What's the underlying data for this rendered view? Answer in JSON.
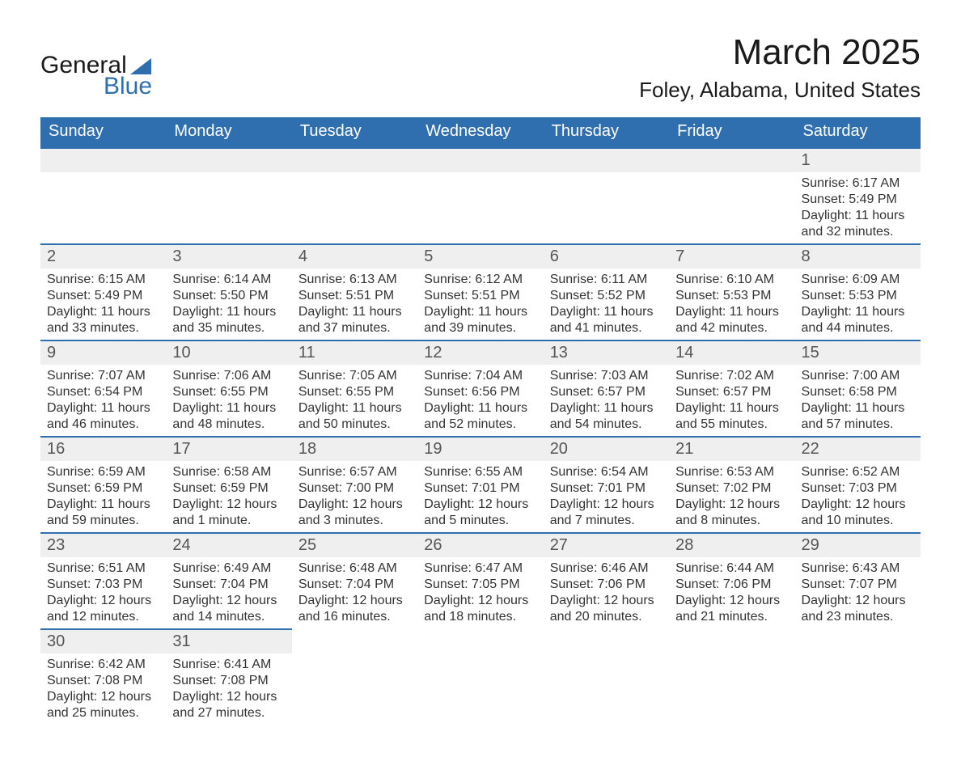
{
  "brand": {
    "line1": "General",
    "line2": "Blue",
    "accent_color": "#2f6fb0"
  },
  "title": "March 2025",
  "location": "Foley, Alabama, United States",
  "colors": {
    "header_bg": "#2f6fb0",
    "header_text": "#ffffff",
    "daynum_bg": "#efefef",
    "daynum_text": "#555555",
    "body_text": "#333333",
    "row_border": "#2f6fb0",
    "page_bg": "#ffffff"
  },
  "weekday_labels": [
    "Sunday",
    "Monday",
    "Tuesday",
    "Wednesday",
    "Thursday",
    "Friday",
    "Saturday"
  ],
  "weeks": [
    [
      null,
      null,
      null,
      null,
      null,
      null,
      {
        "n": "1",
        "sunrise": "Sunrise: 6:17 AM",
        "sunset": "Sunset: 5:49 PM",
        "daylight1": "Daylight: 11 hours",
        "daylight2": "and 32 minutes."
      }
    ],
    [
      {
        "n": "2",
        "sunrise": "Sunrise: 6:15 AM",
        "sunset": "Sunset: 5:49 PM",
        "daylight1": "Daylight: 11 hours",
        "daylight2": "and 33 minutes."
      },
      {
        "n": "3",
        "sunrise": "Sunrise: 6:14 AM",
        "sunset": "Sunset: 5:50 PM",
        "daylight1": "Daylight: 11 hours",
        "daylight2": "and 35 minutes."
      },
      {
        "n": "4",
        "sunrise": "Sunrise: 6:13 AM",
        "sunset": "Sunset: 5:51 PM",
        "daylight1": "Daylight: 11 hours",
        "daylight2": "and 37 minutes."
      },
      {
        "n": "5",
        "sunrise": "Sunrise: 6:12 AM",
        "sunset": "Sunset: 5:51 PM",
        "daylight1": "Daylight: 11 hours",
        "daylight2": "and 39 minutes."
      },
      {
        "n": "6",
        "sunrise": "Sunrise: 6:11 AM",
        "sunset": "Sunset: 5:52 PM",
        "daylight1": "Daylight: 11 hours",
        "daylight2": "and 41 minutes."
      },
      {
        "n": "7",
        "sunrise": "Sunrise: 6:10 AM",
        "sunset": "Sunset: 5:53 PM",
        "daylight1": "Daylight: 11 hours",
        "daylight2": "and 42 minutes."
      },
      {
        "n": "8",
        "sunrise": "Sunrise: 6:09 AM",
        "sunset": "Sunset: 5:53 PM",
        "daylight1": "Daylight: 11 hours",
        "daylight2": "and 44 minutes."
      }
    ],
    [
      {
        "n": "9",
        "sunrise": "Sunrise: 7:07 AM",
        "sunset": "Sunset: 6:54 PM",
        "daylight1": "Daylight: 11 hours",
        "daylight2": "and 46 minutes."
      },
      {
        "n": "10",
        "sunrise": "Sunrise: 7:06 AM",
        "sunset": "Sunset: 6:55 PM",
        "daylight1": "Daylight: 11 hours",
        "daylight2": "and 48 minutes."
      },
      {
        "n": "11",
        "sunrise": "Sunrise: 7:05 AM",
        "sunset": "Sunset: 6:55 PM",
        "daylight1": "Daylight: 11 hours",
        "daylight2": "and 50 minutes."
      },
      {
        "n": "12",
        "sunrise": "Sunrise: 7:04 AM",
        "sunset": "Sunset: 6:56 PM",
        "daylight1": "Daylight: 11 hours",
        "daylight2": "and 52 minutes."
      },
      {
        "n": "13",
        "sunrise": "Sunrise: 7:03 AM",
        "sunset": "Sunset: 6:57 PM",
        "daylight1": "Daylight: 11 hours",
        "daylight2": "and 54 minutes."
      },
      {
        "n": "14",
        "sunrise": "Sunrise: 7:02 AM",
        "sunset": "Sunset: 6:57 PM",
        "daylight1": "Daylight: 11 hours",
        "daylight2": "and 55 minutes."
      },
      {
        "n": "15",
        "sunrise": "Sunrise: 7:00 AM",
        "sunset": "Sunset: 6:58 PM",
        "daylight1": "Daylight: 11 hours",
        "daylight2": "and 57 minutes."
      }
    ],
    [
      {
        "n": "16",
        "sunrise": "Sunrise: 6:59 AM",
        "sunset": "Sunset: 6:59 PM",
        "daylight1": "Daylight: 11 hours",
        "daylight2": "and 59 minutes."
      },
      {
        "n": "17",
        "sunrise": "Sunrise: 6:58 AM",
        "sunset": "Sunset: 6:59 PM",
        "daylight1": "Daylight: 12 hours",
        "daylight2": "and 1 minute."
      },
      {
        "n": "18",
        "sunrise": "Sunrise: 6:57 AM",
        "sunset": "Sunset: 7:00 PM",
        "daylight1": "Daylight: 12 hours",
        "daylight2": "and 3 minutes."
      },
      {
        "n": "19",
        "sunrise": "Sunrise: 6:55 AM",
        "sunset": "Sunset: 7:01 PM",
        "daylight1": "Daylight: 12 hours",
        "daylight2": "and 5 minutes."
      },
      {
        "n": "20",
        "sunrise": "Sunrise: 6:54 AM",
        "sunset": "Sunset: 7:01 PM",
        "daylight1": "Daylight: 12 hours",
        "daylight2": "and 7 minutes."
      },
      {
        "n": "21",
        "sunrise": "Sunrise: 6:53 AM",
        "sunset": "Sunset: 7:02 PM",
        "daylight1": "Daylight: 12 hours",
        "daylight2": "and 8 minutes."
      },
      {
        "n": "22",
        "sunrise": "Sunrise: 6:52 AM",
        "sunset": "Sunset: 7:03 PM",
        "daylight1": "Daylight: 12 hours",
        "daylight2": "and 10 minutes."
      }
    ],
    [
      {
        "n": "23",
        "sunrise": "Sunrise: 6:51 AM",
        "sunset": "Sunset: 7:03 PM",
        "daylight1": "Daylight: 12 hours",
        "daylight2": "and 12 minutes."
      },
      {
        "n": "24",
        "sunrise": "Sunrise: 6:49 AM",
        "sunset": "Sunset: 7:04 PM",
        "daylight1": "Daylight: 12 hours",
        "daylight2": "and 14 minutes."
      },
      {
        "n": "25",
        "sunrise": "Sunrise: 6:48 AM",
        "sunset": "Sunset: 7:04 PM",
        "daylight1": "Daylight: 12 hours",
        "daylight2": "and 16 minutes."
      },
      {
        "n": "26",
        "sunrise": "Sunrise: 6:47 AM",
        "sunset": "Sunset: 7:05 PM",
        "daylight1": "Daylight: 12 hours",
        "daylight2": "and 18 minutes."
      },
      {
        "n": "27",
        "sunrise": "Sunrise: 6:46 AM",
        "sunset": "Sunset: 7:06 PM",
        "daylight1": "Daylight: 12 hours",
        "daylight2": "and 20 minutes."
      },
      {
        "n": "28",
        "sunrise": "Sunrise: 6:44 AM",
        "sunset": "Sunset: 7:06 PM",
        "daylight1": "Daylight: 12 hours",
        "daylight2": "and 21 minutes."
      },
      {
        "n": "29",
        "sunrise": "Sunrise: 6:43 AM",
        "sunset": "Sunset: 7:07 PM",
        "daylight1": "Daylight: 12 hours",
        "daylight2": "and 23 minutes."
      }
    ],
    [
      {
        "n": "30",
        "sunrise": "Sunrise: 6:42 AM",
        "sunset": "Sunset: 7:08 PM",
        "daylight1": "Daylight: 12 hours",
        "daylight2": "and 25 minutes."
      },
      {
        "n": "31",
        "sunrise": "Sunrise: 6:41 AM",
        "sunset": "Sunset: 7:08 PM",
        "daylight1": "Daylight: 12 hours",
        "daylight2": "and 27 minutes."
      },
      null,
      null,
      null,
      null,
      null
    ]
  ]
}
